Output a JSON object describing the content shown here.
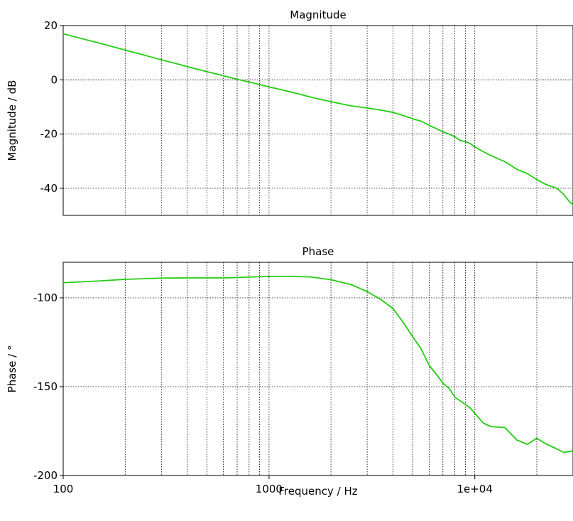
{
  "chart_data": [
    {
      "type": "line",
      "title": "Magnitude",
      "xlabel": "",
      "ylabel": "Magnitude / dB",
      "x_scale": "log",
      "ylim": [
        -50,
        20
      ],
      "yticks": [
        20,
        0,
        -20,
        -40
      ],
      "ytick_labels": [
        "20",
        "0",
        "-20",
        "-40"
      ],
      "grid": true,
      "color": "#22cc11",
      "series": [
        {
          "x": [
            100,
            150,
            200,
            300,
            400,
            500,
            600,
            700,
            800,
            1000,
            1300,
            1600,
            2000,
            2500,
            3000,
            3500,
            4000,
            4500,
            5000,
            5500,
            6000,
            6500,
            7000,
            7500,
            8000,
            8500,
            9000,
            9500,
            10000,
            11000,
            12000,
            14000,
            16000,
            18000,
            20000,
            22000,
            25000,
            27000,
            29000,
            30000
          ],
          "y": [
            17.0,
            13.5,
            11.0,
            7.4,
            4.9,
            3.0,
            1.5,
            0.2,
            -0.8,
            -2.6,
            -4.6,
            -6.4,
            -8.1,
            -9.6,
            -10.4,
            -11.2,
            -12.0,
            -13.2,
            -14.4,
            -15.3,
            -16.8,
            -18.0,
            -19.2,
            -20.0,
            -21.0,
            -22.4,
            -22.8,
            -23.5,
            -24.8,
            -26.5,
            -28.0,
            -30.2,
            -33.0,
            -34.6,
            -36.8,
            -38.5,
            -40.0,
            -42.2,
            -45.2,
            -46.0
          ]
        }
      ]
    },
    {
      "type": "line",
      "title": "Phase",
      "xlabel": "Frequency / Hz",
      "ylabel": "Phase / °",
      "x_scale": "log",
      "xlim": [
        100,
        30000
      ],
      "xticks": [
        100,
        1000,
        10000
      ],
      "xtick_labels": [
        "100",
        "1000",
        "1e+04"
      ],
      "ylim": [
        -200,
        -80
      ],
      "yticks": [
        -100,
        -150,
        -200
      ],
      "ytick_labels": [
        "-100",
        "-150",
        "-200"
      ],
      "grid": true,
      "color": "#22cc11",
      "series": [
        {
          "x": [
            100,
            150,
            200,
            300,
            400,
            500,
            600,
            700,
            800,
            1000,
            1300,
            1600,
            2000,
            2500,
            3000,
            3500,
            4000,
            4500,
            5000,
            5500,
            6000,
            6500,
            7000,
            7500,
            8000,
            8500,
            9000,
            9500,
            10000,
            11000,
            12000,
            14000,
            16000,
            18000,
            20000,
            22000,
            25000,
            27000,
            29000,
            30000
          ],
          "y": [
            -91.5,
            -90.5,
            -89.6,
            -88.9,
            -88.8,
            -88.8,
            -88.8,
            -88.6,
            -88.3,
            -88.0,
            -87.9,
            -88.3,
            -89.8,
            -92.5,
            -96.5,
            -101.0,
            -106.0,
            -114.0,
            -122.0,
            -129.0,
            -138.0,
            -143.0,
            -148.0,
            -151.0,
            -156.0,
            -158.0,
            -160.0,
            -162.0,
            -165.0,
            -170.5,
            -172.5,
            -173.0,
            -180.0,
            -182.5,
            -179.0,
            -182.0,
            -185.0,
            -187.0,
            -186.5,
            -186.0
          ]
        }
      ]
    }
  ]
}
